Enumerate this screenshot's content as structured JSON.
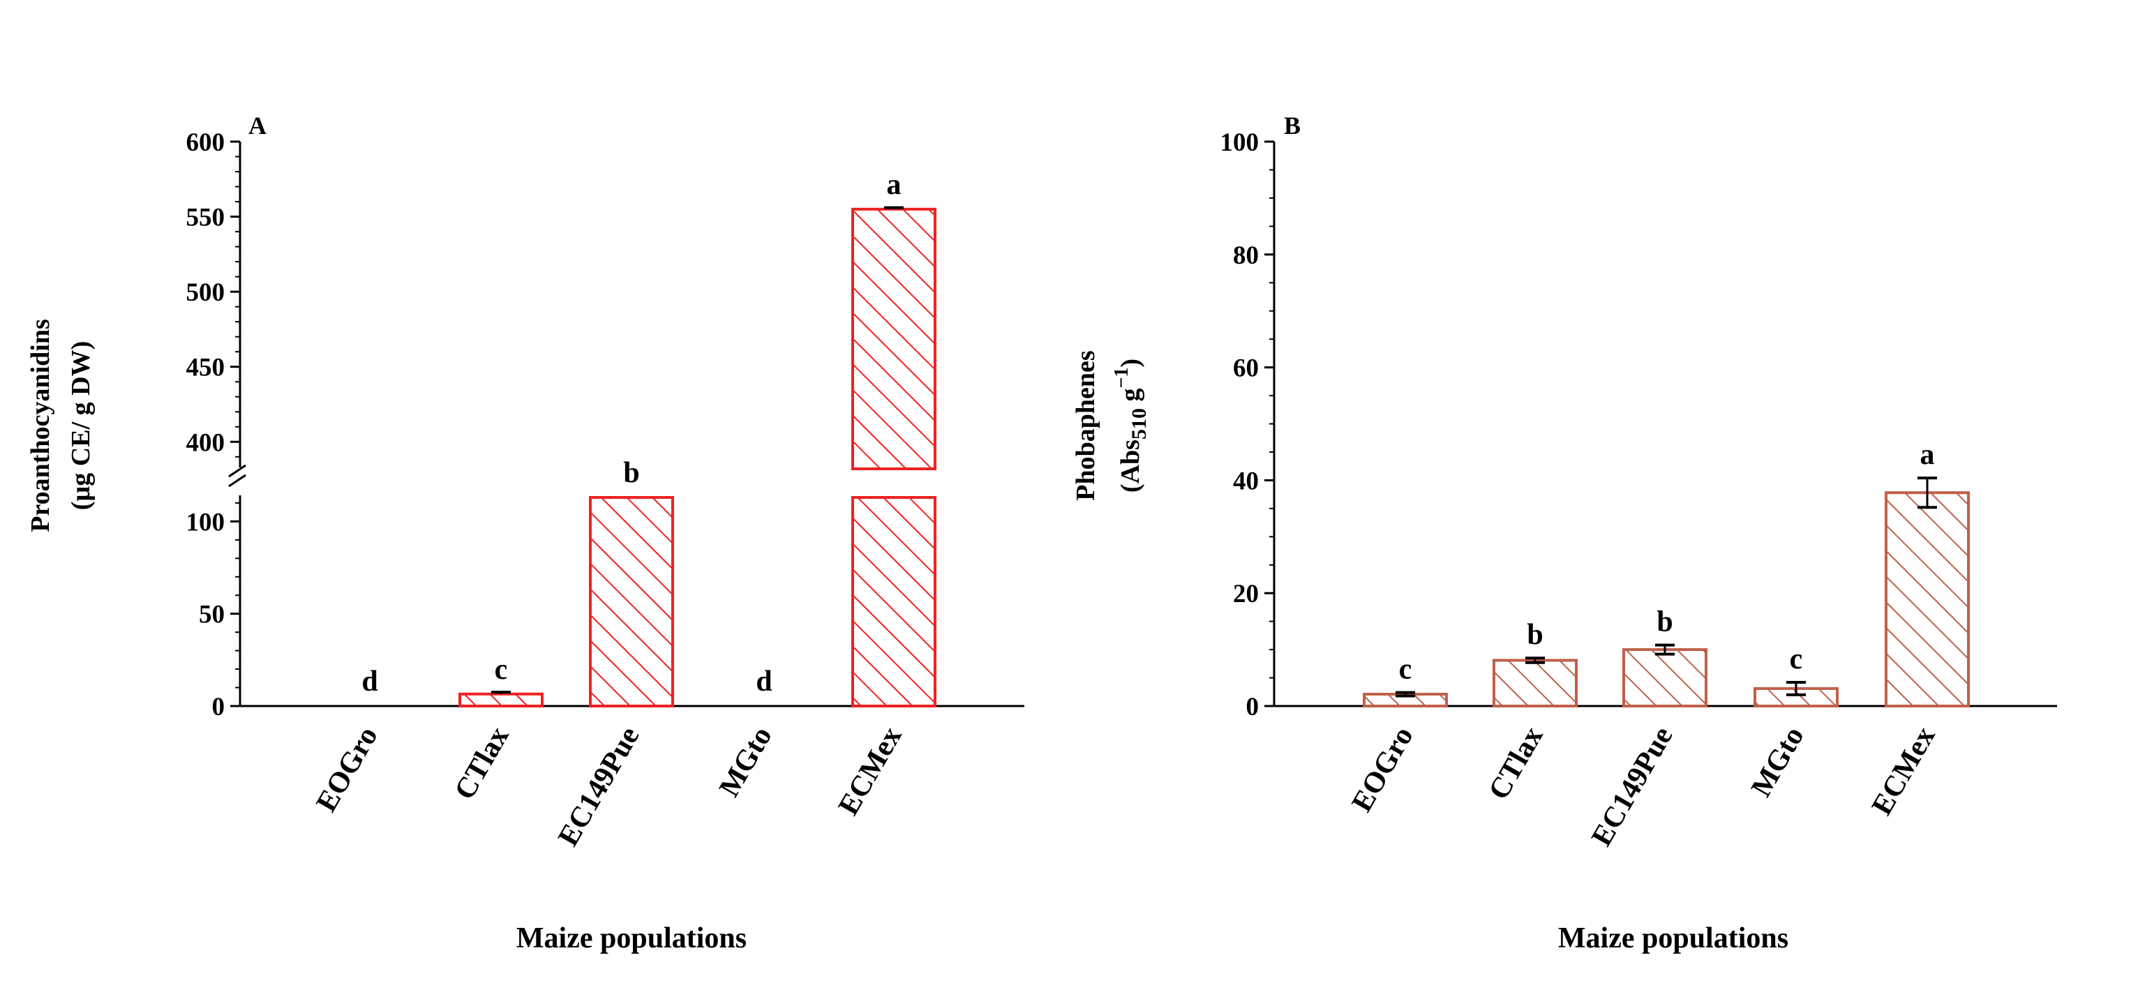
{
  "chart_data": [
    {
      "panel": "A",
      "type": "bar",
      "title": "",
      "xlabel": "Maize populations",
      "ylabel_line1": "Proanthocyanidins",
      "ylabel_line2": "(µg CE/ g DW)",
      "categories": [
        "EOGro",
        "CTlax",
        "EC149Pue",
        "MGto",
        "ECMex"
      ],
      "values": [
        0,
        6.5,
        113,
        0,
        555
      ],
      "errors": [
        0,
        1,
        0,
        0,
        1
      ],
      "letters": [
        "d",
        "c",
        "b",
        "d",
        "a"
      ],
      "axis_break": true,
      "ylim_lower": [
        0,
        113
      ],
      "ylim_upper": [
        382,
        600
      ],
      "yticks_lower": [
        0,
        50,
        100
      ],
      "yticks_upper": [
        400,
        450,
        500,
        550,
        600
      ],
      "yticklabels_lower": [
        "0",
        "50",
        "100"
      ],
      "yticklabels_upper": [
        "400",
        "450",
        "500",
        "550",
        "600"
      ],
      "bar_color": "#ee2222",
      "hatch": "diagonal"
    },
    {
      "panel": "B",
      "type": "bar",
      "title": "",
      "xlabel": "Maize populations",
      "ylabel_line1": "Phobaphenes",
      "ylabel_line2_a": "(Abs",
      "ylabel_line2_sub": "510",
      "ylabel_line2_b": " g",
      "ylabel_line2_sup": "−1",
      "ylabel_line2_c": ")",
      "categories": [
        "EOGro",
        "CTlax",
        "EC149Pue",
        "MGto",
        "ECMex"
      ],
      "values": [
        2.1,
        8.1,
        10.0,
        3.1,
        37.8
      ],
      "errors": [
        0.3,
        0.4,
        0.8,
        1.1,
        2.6
      ],
      "letters": [
        "c",
        "b",
        "b",
        "c",
        "a"
      ],
      "ylim": [
        0,
        100
      ],
      "yticks": [
        0,
        20,
        40,
        60,
        80,
        100
      ],
      "yticklabels": [
        "0",
        "20",
        "40",
        "60",
        "80",
        "100"
      ],
      "bar_color": "#c0604a",
      "hatch": "diagonal"
    }
  ]
}
